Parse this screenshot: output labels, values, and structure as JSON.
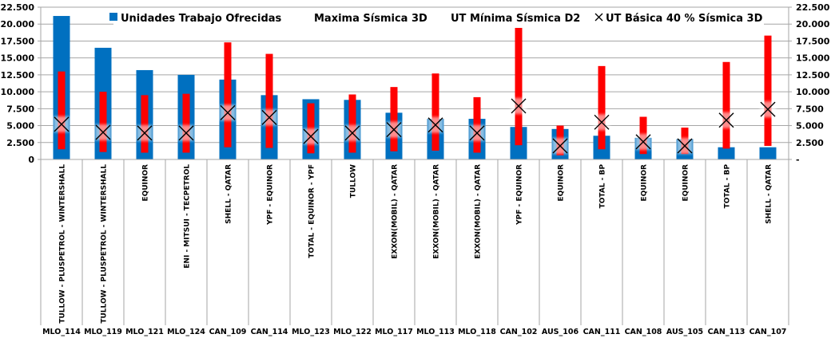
{
  "chart_data": {
    "type": "bar",
    "title": "",
    "xlabel": "",
    "ylabel": "",
    "ylim": [
      0,
      22500
    ],
    "grid": true,
    "legend_position": "top",
    "left_ticks": [
      "0",
      "2.500",
      "5.000",
      "7.500",
      "10.000",
      "12.500",
      "15.000",
      "17.500",
      "20.000",
      "22.500"
    ],
    "right_ticks": [
      "-",
      "2.500",
      "5.000",
      "7.500",
      "10.000",
      "12.500",
      "15.000",
      "17.500",
      "20.000",
      "22.500"
    ],
    "tick_values": [
      0,
      2500,
      5000,
      7500,
      10000,
      12500,
      15000,
      17500,
      20000,
      22500
    ],
    "categories": [
      "MLO_114",
      "MLO_119",
      "MLO_121",
      "MLO_124",
      "CAN_109",
      "CAN_114",
      "MLO_123",
      "MLO_122",
      "MLO_117",
      "MLO_113",
      "MLO_118",
      "CAN_102",
      "AUS_106",
      "CAN_111",
      "CAN_108",
      "AUS_105",
      "CAN_113",
      "CAN_107"
    ],
    "companies": [
      "TULLOW - PLUSPETROL - WINTERSHALL",
      "TULLOW - PLUSPETROL - WINTERSHALL",
      "EQUINOR",
      "ENI - MITSUI - TECPETROL",
      "SHELL - QATAR",
      "YPF - EQUINOR",
      "TOTAL - EQUINOR - YPF",
      "TULLOW",
      "EXXON(MOBIL) - QATAR",
      "EXXON(MOBIL) - QATAR",
      "EXXON(MOBIL) - QATAR",
      "YPF - EQUINOR",
      "EQUINOR",
      "TOTAL - BP",
      "EQUINOR",
      "EQUINOR",
      "TOTAL - BP",
      "SHELL - QATAR"
    ],
    "series": [
      {
        "name": "Unidades Trabajo Ofrecidas",
        "type": "bar",
        "color": "#0070C0",
        "values": [
          21200,
          16500,
          13200,
          12500,
          11800,
          9500,
          8900,
          8800,
          6900,
          6000,
          6000,
          4800,
          4500,
          3500,
          3200,
          3000,
          1800,
          1800
        ]
      },
      {
        "name": "Maxima Sísmica 3D",
        "type": "range-high",
        "color": "#FF0000",
        "values": [
          13000,
          10000,
          9500,
          9700,
          17300,
          15600,
          8300,
          9600,
          10700,
          12700,
          9200,
          19700,
          5000,
          13800,
          6300,
          4700,
          14400,
          18300
        ]
      },
      {
        "name": "UT Mínima Sísmica D2",
        "type": "range-low",
        "color": "#FF0000",
        "values": [
          1500,
          1100,
          1000,
          1000,
          1800,
          1700,
          900,
          1000,
          1200,
          1300,
          1000,
          2100,
          600,
          1500,
          800,
          800,
          1600,
          2000
        ]
      },
      {
        "name": "UT Básica 40 % Sísmica 3D",
        "type": "marker-x",
        "color": "#000000",
        "values": [
          5200,
          4000,
          3900,
          3900,
          6900,
          6200,
          3400,
          3900,
          4400,
          5100,
          3900,
          7900,
          2000,
          5500,
          2600,
          2000,
          5800,
          7400
        ]
      }
    ]
  }
}
